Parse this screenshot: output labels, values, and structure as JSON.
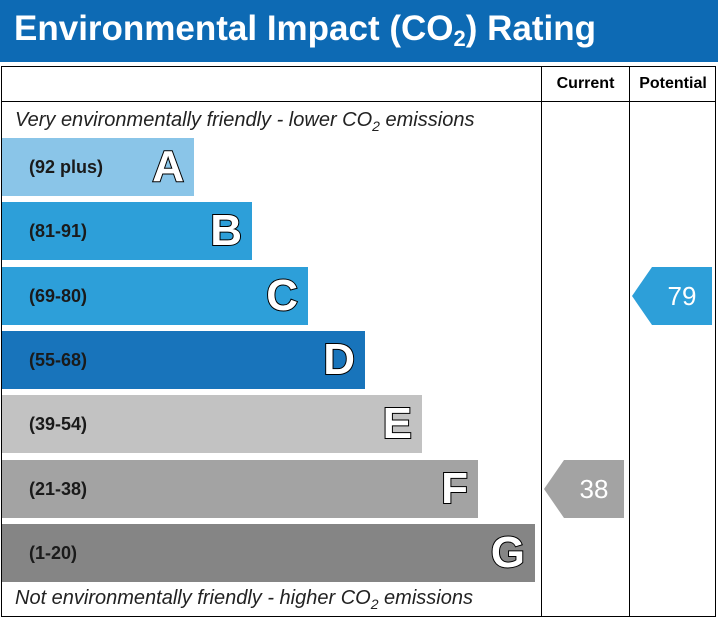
{
  "title_prefix": "Environmental Impact (CO",
  "title_sub": "2",
  "title_suffix": ") Rating",
  "columns": {
    "current": "Current",
    "potential": "Potential"
  },
  "top_note": {
    "prefix": "Very environmentally friendly - lower CO",
    "sub": "2",
    "suffix": " emissions"
  },
  "bottom_note": {
    "prefix": "Not environmentally friendly - higher CO",
    "sub": "2",
    "suffix": " emissions"
  },
  "bands": [
    {
      "letter": "A",
      "range": "(92 plus)",
      "color": "#8ac5e8"
    },
    {
      "letter": "B",
      "range": "(81-91)",
      "color": "#2d9fd9"
    },
    {
      "letter": "C",
      "range": "(69-80)",
      "color": "#2d9fd9"
    },
    {
      "letter": "D",
      "range": "(55-68)",
      "color": "#1874bb"
    },
    {
      "letter": "E",
      "range": "(39-54)",
      "color": "#c2c2c2"
    },
    {
      "letter": "F",
      "range": "(21-38)",
      "color": "#a3a3a3"
    },
    {
      "letter": "G",
      "range": "(1-20)",
      "color": "#858585"
    }
  ],
  "chart_data": {
    "type": "bar",
    "categories": [
      "A",
      "B",
      "C",
      "D",
      "E",
      "F",
      "G"
    ],
    "ranges": [
      "(92 plus)",
      "(81-91)",
      "(69-80)",
      "(55-68)",
      "(39-54)",
      "(21-38)",
      "(1-20)"
    ],
    "current": {
      "value": 38,
      "band": "F",
      "color": "#a3a3a3"
    },
    "potential": {
      "value": 79,
      "band": "C",
      "color": "#2d9fd9"
    }
  }
}
